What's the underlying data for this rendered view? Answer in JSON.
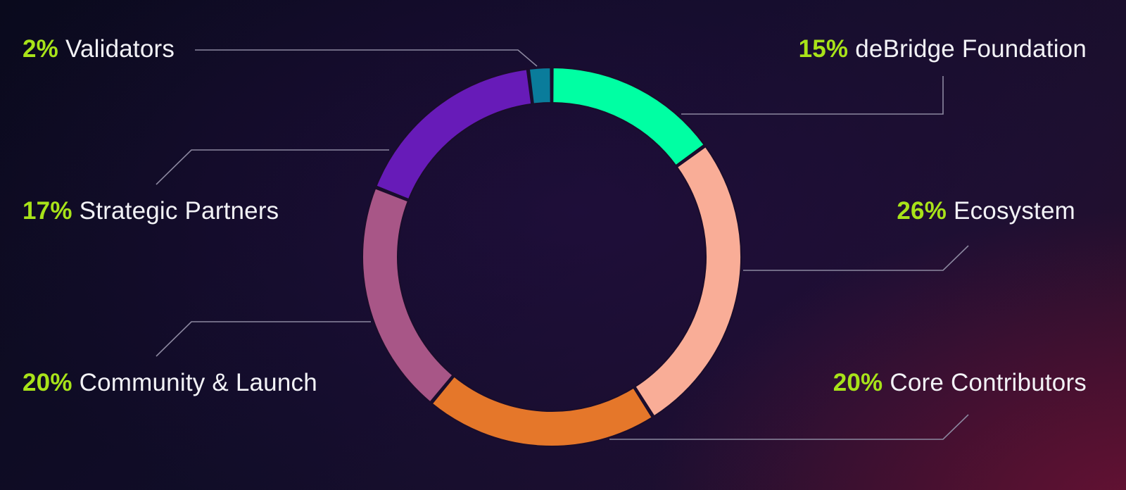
{
  "chart_data": {
    "type": "pie",
    "variant": "donut",
    "start": "top",
    "direction": "clockwise",
    "slices": [
      {
        "label": "deBridge Foundation",
        "value": 15,
        "display": "15%",
        "color": "#00ffa3"
      },
      {
        "label": "Ecosystem",
        "value": 26,
        "display": "26%",
        "color": "#f9ad97"
      },
      {
        "label": "Core Contributors",
        "value": 20,
        "display": "20%",
        "color": "#e5772a"
      },
      {
        "label": "Community & Launch",
        "value": 20,
        "display": "20%",
        "color": "#a85687"
      },
      {
        "label": "Strategic Partners",
        "value": 17,
        "display": "17%",
        "color": "#671bb8"
      },
      {
        "label": "Validators",
        "value": 2,
        "display": "2%",
        "color": "#0a7c9b"
      }
    ]
  },
  "colors": {
    "percent_text": "#a8e319",
    "label_text": "#f2f2f6",
    "leader_line": "#8c88a0",
    "slice_separator": "#1a0d2b"
  }
}
